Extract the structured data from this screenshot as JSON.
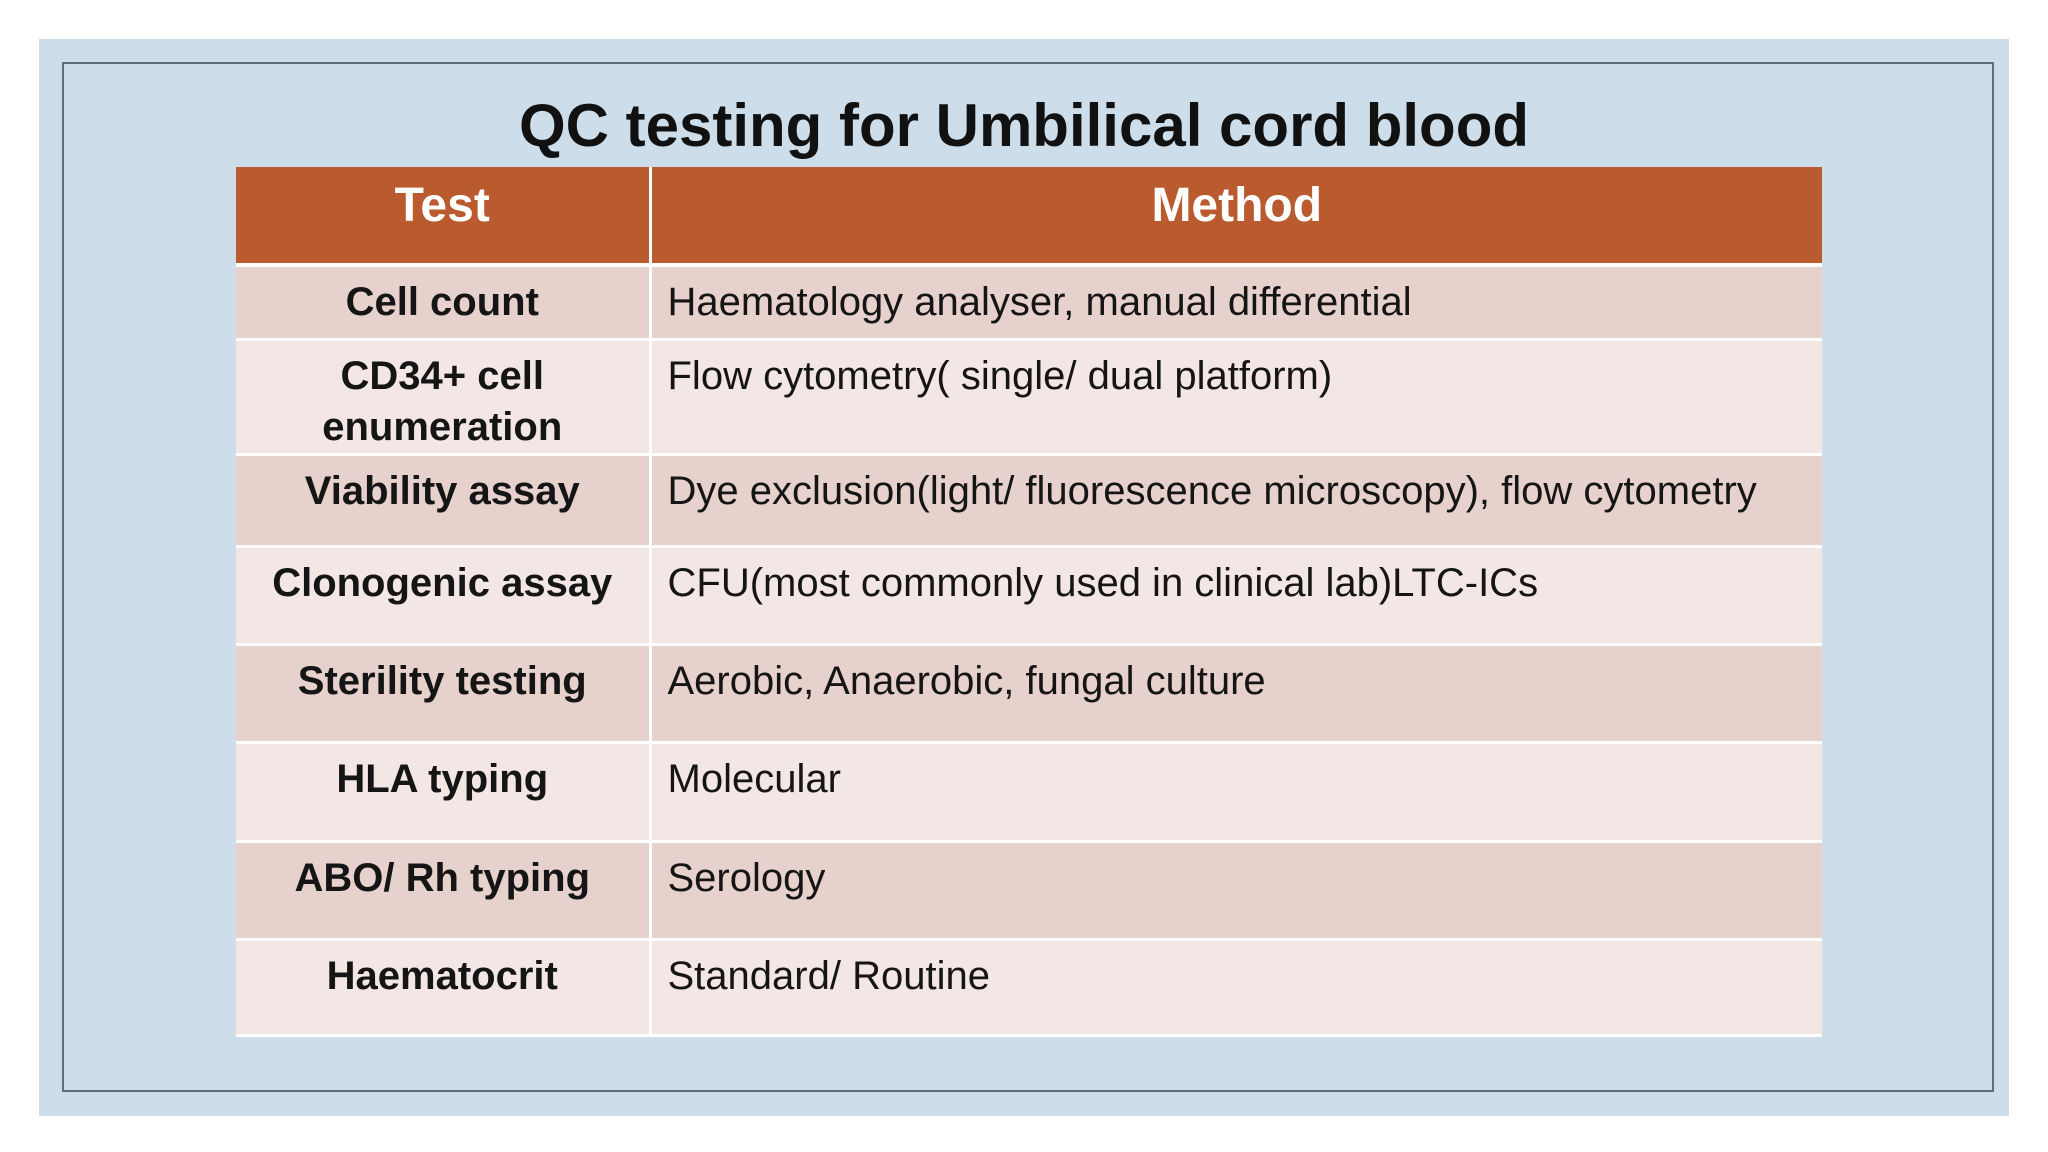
{
  "slide": {
    "title": "QC testing for Umbilical cord blood"
  },
  "table": {
    "headers": [
      "Test",
      "Method"
    ],
    "rows": [
      {
        "test": "Cell count",
        "method": "Haematology analyser, manual differential"
      },
      {
        "test": "CD34+ cell enumeration",
        "method": "Flow cytometry( single/ dual platform)"
      },
      {
        "test": "Viability assay",
        "method": "Dye exclusion(light/ fluorescence microscopy), flow cytometry"
      },
      {
        "test": "Clonogenic assay",
        "method": "CFU(most commonly used in clinical lab)LTC-ICs"
      },
      {
        "test": "Sterility testing",
        "method": "Aerobic, Anaerobic, fungal culture"
      },
      {
        "test": "HLA typing",
        "method": "Molecular"
      },
      {
        "test": "ABO/ Rh typing",
        "method": "Serology"
      },
      {
        "test": "Haematocrit",
        "method": "Standard/ Routine"
      }
    ]
  },
  "colors": {
    "slide_background": "#cddeea",
    "header_fill": "#b95a2f",
    "row_dark": "#e7d1cd",
    "row_light": "#f3e7e6",
    "frame_border": "#5f6f7e"
  }
}
